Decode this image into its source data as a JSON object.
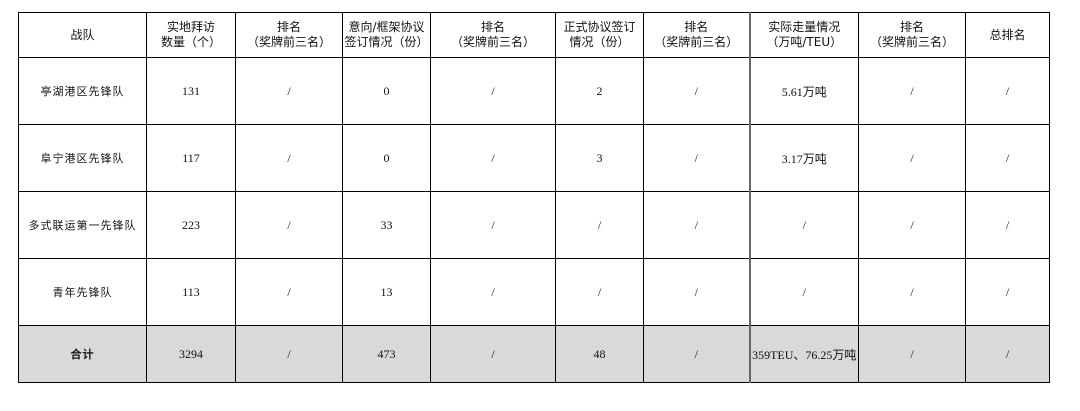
{
  "headers": [
    "战队",
    "实地拜访\n数量（个）",
    "排名\n（奖牌前三名）",
    "意向/框架协议\n签订情况（份）",
    "排名\n（奖牌前三名）",
    "正式协议签订\n情况（份）",
    "排名\n（奖牌前三名）",
    "实际走量情况\n（万吨/TEU）",
    "排名\n（奖牌前三名）",
    "总排名"
  ],
  "rows": [
    [
      "亭湖港区先锋队",
      "131",
      "/",
      "0",
      "/",
      "2",
      "/",
      "5.61万吨",
      "/",
      "/"
    ],
    [
      "阜宁港区先锋队",
      "117",
      "/",
      "0",
      "/",
      "3",
      "/",
      "3.17万吨",
      "/",
      "/"
    ],
    [
      "多式联运第一先锋队",
      "223",
      "/",
      "33",
      "/",
      "/",
      "/",
      "/",
      "/",
      "/"
    ],
    [
      "青年先锋队",
      "113",
      "/",
      "13",
      "/",
      "/",
      "/",
      "/",
      "/",
      "/"
    ]
  ],
  "total": [
    "合计",
    "3294",
    "/",
    "473",
    "/",
    "48",
    "/",
    "359TEU、76.25万吨",
    "/",
    "/"
  ],
  "colors": {
    "total_row_bg": "#d9d9d9",
    "border": "#000000"
  }
}
